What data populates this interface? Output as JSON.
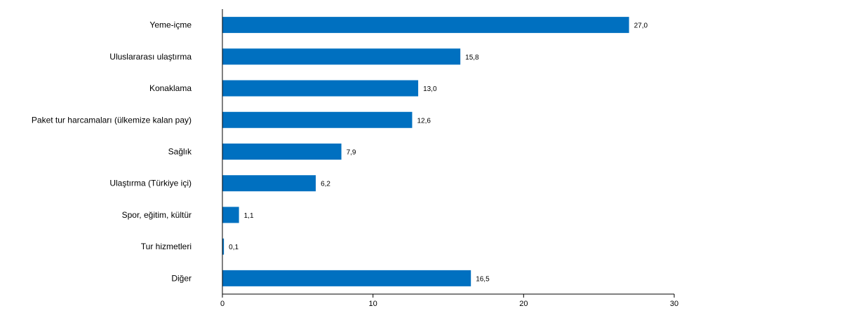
{
  "chart_data": {
    "type": "bar",
    "orientation": "horizontal",
    "categories": [
      "Yeme-içme",
      "Uluslararası ulaştırma",
      "Konaklama",
      "Paket tur harcamaları (ülkemize kalan pay)",
      "Sağlık",
      "Ulaştırma (Türkiye içi)",
      "Spor, eğitim, kültür",
      "Tur hizmetleri",
      "Diğer"
    ],
    "values": [
      27.0,
      15.8,
      13.0,
      12.6,
      7.9,
      6.2,
      1.1,
      0.1,
      16.5
    ],
    "value_labels": [
      "27,0",
      "15,8",
      "13,0",
      "12,6",
      "7,9",
      "6,2",
      "1,1",
      "0,1",
      "16,5"
    ],
    "title": "",
    "xlabel": "",
    "ylabel": "",
    "xlim": [
      0,
      30
    ],
    "x_ticks": [
      0,
      10,
      20,
      30
    ],
    "x_tick_labels": [
      "0",
      "10",
      "20",
      "30"
    ],
    "grid": false,
    "legend": "none",
    "bar_color": "#0070C0",
    "axis_color": "#000000"
  }
}
